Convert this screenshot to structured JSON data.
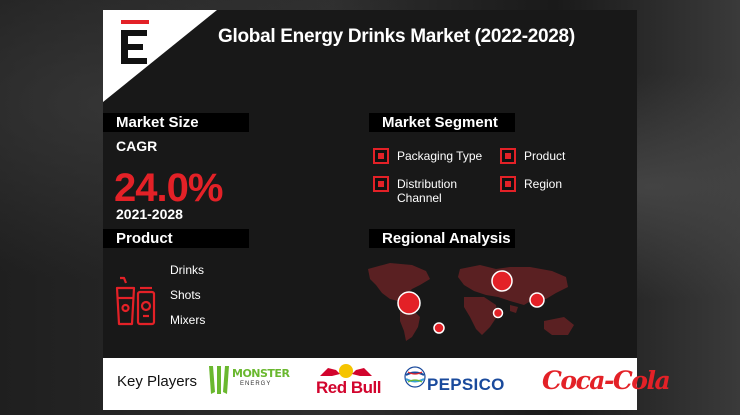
{
  "title": "Global Energy Drinks Market (2022-2028)",
  "colors": {
    "accent": "#e32127",
    "panel": "#181818",
    "text": "#ffffff"
  },
  "market_size": {
    "header": "Market Size",
    "cagr_label": "CAGR",
    "cagr_value": "24.0%",
    "period": "2021-2028"
  },
  "product": {
    "header": "Product",
    "icon": "energy-drink-cans-icon",
    "items": [
      "Drinks",
      "Shots",
      "Mixers"
    ]
  },
  "market_segment": {
    "header": "Market Segment",
    "items": [
      "Packaging Type",
      "Product",
      "Distribution Channel",
      "Region"
    ]
  },
  "regional_analysis": {
    "header": "Regional Analysis",
    "icon": "world-map-icon"
  },
  "key_players": {
    "label": "Key Players",
    "brands": [
      "MONSTER ENERGY",
      "Red Bull",
      "PEPSICO",
      "Coca-Cola"
    ],
    "monster_title": "MONSTER",
    "monster_sub": "ENERGY",
    "redbull": "Red Bull",
    "pepsico": "PEPSICO",
    "cocacola": "Coca-Cola"
  }
}
